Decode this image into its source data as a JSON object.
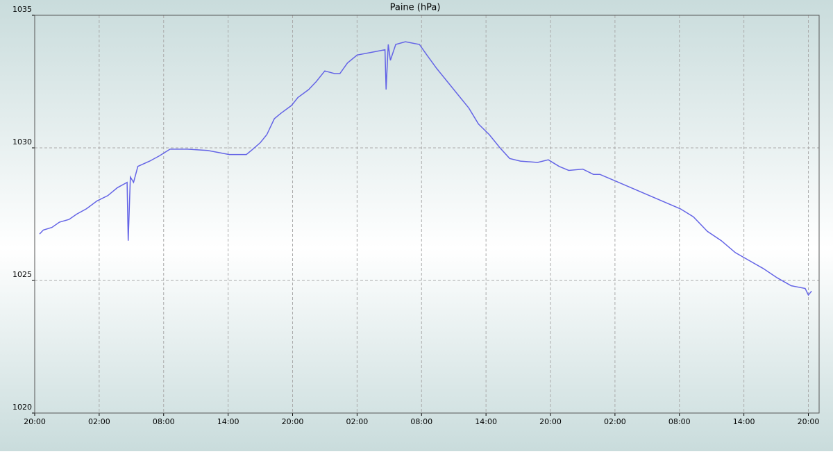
{
  "chart_data": {
    "type": "line",
    "title": "Paine (hPa)",
    "x": [
      0.45,
      0.8,
      1.6,
      2.3,
      3.2,
      3.9,
      4.8,
      5.8,
      6.8,
      7.7,
      8.6,
      8.7,
      8.9,
      9.2,
      9.6,
      10.7,
      11.6,
      12.6,
      14.2,
      16.1,
      18.1,
      19.7,
      20.3,
      21.0,
      21.6,
      22.3,
      22.9,
      23.9,
      24.5,
      25.5,
      26.2,
      27.0,
      27.9,
      28.4,
      29.1,
      30.0,
      31.3,
      32.6,
      32.7,
      32.9,
      33.1,
      33.6,
      34.5,
      35.8,
      36.5,
      37.4,
      38.4,
      39.4,
      40.4,
      41.3,
      42.3,
      43.3,
      44.2,
      45.2,
      46.8,
      47.8,
      48.8,
      49.7,
      51.0,
      52.0,
      52.6,
      60.1,
      61.3,
      62.6,
      63.9,
      65.2,
      66.5,
      67.8,
      69.1,
      70.4,
      71.7,
      72.0,
      72.3
    ],
    "series": [
      {
        "name": "Paine",
        "color": "#6464e6",
        "values": [
          1026.75,
          1026.9,
          1027.0,
          1027.2,
          1027.3,
          1027.5,
          1027.7,
          1028.0,
          1028.2,
          1028.5,
          1028.7,
          1026.5,
          1028.9,
          1028.7,
          1029.3,
          1029.5,
          1029.7,
          1029.95,
          1029.95,
          1029.9,
          1029.75,
          1029.75,
          1029.95,
          1030.2,
          1030.5,
          1031.1,
          1031.3,
          1031.6,
          1031.9,
          1032.2,
          1032.5,
          1032.9,
          1032.8,
          1032.8,
          1033.2,
          1033.5,
          1033.6,
          1033.7,
          1032.2,
          1033.9,
          1033.3,
          1033.9,
          1034.0,
          1033.9,
          1033.5,
          1033.0,
          1032.5,
          1032.0,
          1031.5,
          1030.9,
          1030.5,
          1030.0,
          1029.6,
          1029.5,
          1029.45,
          1029.55,
          1029.3,
          1029.15,
          1029.2,
          1029.0,
          1029.0,
          1027.7,
          1027.4,
          1026.85,
          1026.5,
          1026.05,
          1025.75,
          1025.45,
          1025.1,
          1024.8,
          1024.7,
          1024.45,
          1024.6
        ]
      }
    ],
    "xlim": [
      0,
      73
    ],
    "xticks": [
      {
        "value": 0,
        "label": "20:00"
      },
      {
        "value": 6,
        "label": "02:00"
      },
      {
        "value": 12,
        "label": "08:00"
      },
      {
        "value": 18,
        "label": "14:00"
      },
      {
        "value": 24,
        "label": "20:00"
      },
      {
        "value": 30,
        "label": "02:00"
      },
      {
        "value": 36,
        "label": "08:00"
      },
      {
        "value": 42,
        "label": "14:00"
      },
      {
        "value": 48,
        "label": "20:00"
      },
      {
        "value": 54,
        "label": "02:00"
      },
      {
        "value": 60,
        "label": "08:00"
      },
      {
        "value": 66,
        "label": "14:00"
      },
      {
        "value": 72,
        "label": "20:00"
      }
    ],
    "ylim": [
      1020,
      1035
    ],
    "yticks": [
      1020,
      1025,
      1030,
      1035
    ],
    "grid": true
  }
}
